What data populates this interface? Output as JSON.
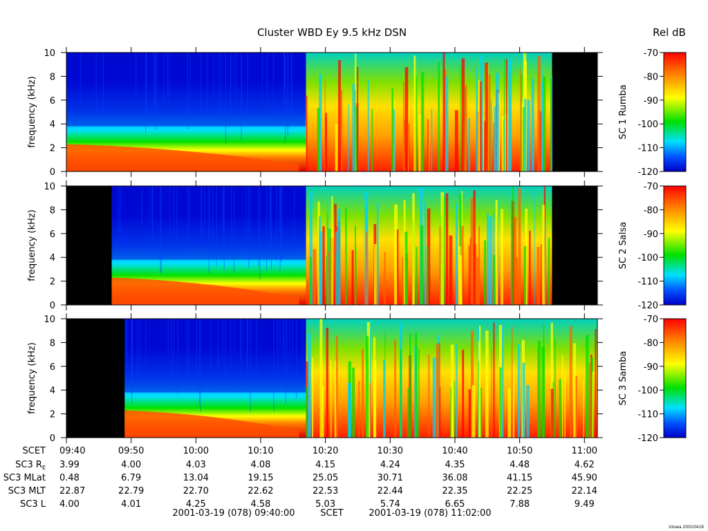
{
  "title": "Cluster WBD Ey 9.5 kHz DSN",
  "colorbar_title": "Rel dB",
  "footer_tag": "Uiowa 20010419",
  "chart_data": {
    "type": "heatmap",
    "x_range_utc": [
      "09:40",
      "11:02"
    ],
    "y_range_khz": [
      0,
      10
    ],
    "ylabel": "frequency (kHz)",
    "yticks": [
      0,
      2,
      4,
      6,
      8,
      10
    ],
    "x_tick_labels": [
      "09:40",
      "09:50",
      "10:00",
      "10:10",
      "10:20",
      "10:30",
      "10:40",
      "10:50",
      "11:00"
    ],
    "color_scale": {
      "min": -120,
      "max": -70,
      "ticks": [
        -70,
        -80,
        -90,
        -100,
        -110,
        -120
      ],
      "colors": [
        "#0000c8",
        "#0060ff",
        "#00e0ff",
        "#00e000",
        "#ffff00",
        "#ff8000",
        "#ff0000"
      ]
    },
    "panels": [
      {
        "label": "SC 1 Rumba",
        "data_start": "09:40",
        "data_end": "10:55"
      },
      {
        "label": "SC 2 Salsa",
        "data_start": "09:47",
        "data_end": "10:55"
      },
      {
        "label": "SC 3 Samba",
        "data_start": "09:49",
        "data_end": "11:02"
      }
    ]
  },
  "ephemeris": {
    "rows": [
      {
        "label": "SCET",
        "values": [
          "09:40",
          "09:50",
          "10:00",
          "10:10",
          "10:20",
          "10:30",
          "10:40",
          "10:50",
          "11:00"
        ]
      },
      {
        "label": "SC3 R",
        "sub": "E",
        "values": [
          "3.99",
          "4.00",
          "4.03",
          "4.08",
          "4.15",
          "4.24",
          "4.35",
          "4.48",
          "4.62"
        ]
      },
      {
        "label": "SC3 MLat",
        "values": [
          "0.48",
          "6.79",
          "13.04",
          "19.15",
          "25.05",
          "30.71",
          "36.08",
          "41.15",
          "45.90"
        ]
      },
      {
        "label": "SC3 MLT",
        "values": [
          "22.87",
          "22.79",
          "22.70",
          "22.62",
          "22.53",
          "22.44",
          "22.35",
          "22.25",
          "22.14"
        ]
      },
      {
        "label": "SC3 L",
        "values": [
          "4.00",
          "4.01",
          "4.25",
          "4.58",
          "5.03",
          "5.74",
          "6.65",
          "7.88",
          "9.49"
        ]
      }
    ],
    "range_start": "2001-03-19 (078) 09:40:00",
    "range_mid": "SCET",
    "range_end": "2001-03-19 (078) 11:02:00"
  }
}
